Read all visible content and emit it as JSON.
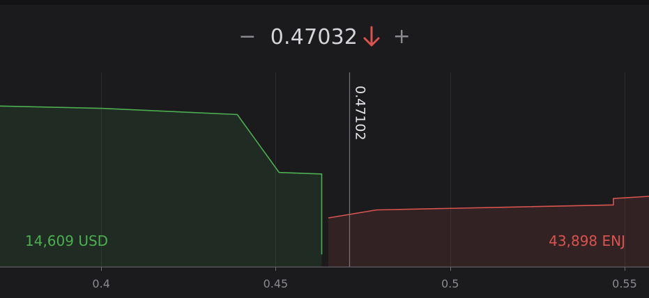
{
  "toolbar": {
    "minus_label": "−",
    "price": "0.47032",
    "price_direction": "down-arrow-icon",
    "plus_label": "+"
  },
  "colors": {
    "background": "#1b1b1e",
    "bid": "#4caf50",
    "ask": "#d9534f",
    "grid": "#2c2c30",
    "tick_text": "#8a8a90"
  },
  "chart_data": {
    "type": "area",
    "x_ticks": [
      0.4,
      0.45,
      0.5,
      0.55
    ],
    "x_tick_labels": [
      "0.4",
      "0.45",
      "0.5",
      "0.55"
    ],
    "xlim": [
      0.371,
      0.557
    ],
    "ylim": [
      0,
      1
    ],
    "grid": true,
    "mid_price": 0.47102,
    "mid_price_label": "0.47102",
    "series": [
      {
        "side": "bid",
        "x": [
          0.371,
          0.4,
          0.439,
          0.451,
          0.4632,
          0.4632
        ],
        "y": [
          0.827,
          0.815,
          0.783,
          0.485,
          0.477,
          0.063
        ],
        "label": "14,609 USD"
      },
      {
        "side": "ask",
        "x": [
          0.4651,
          0.4789,
          0.5468,
          0.5468,
          0.557
        ],
        "y": [
          0.251,
          0.292,
          0.318,
          0.351,
          0.362
        ],
        "label": "43,898 ENJ"
      }
    ]
  }
}
